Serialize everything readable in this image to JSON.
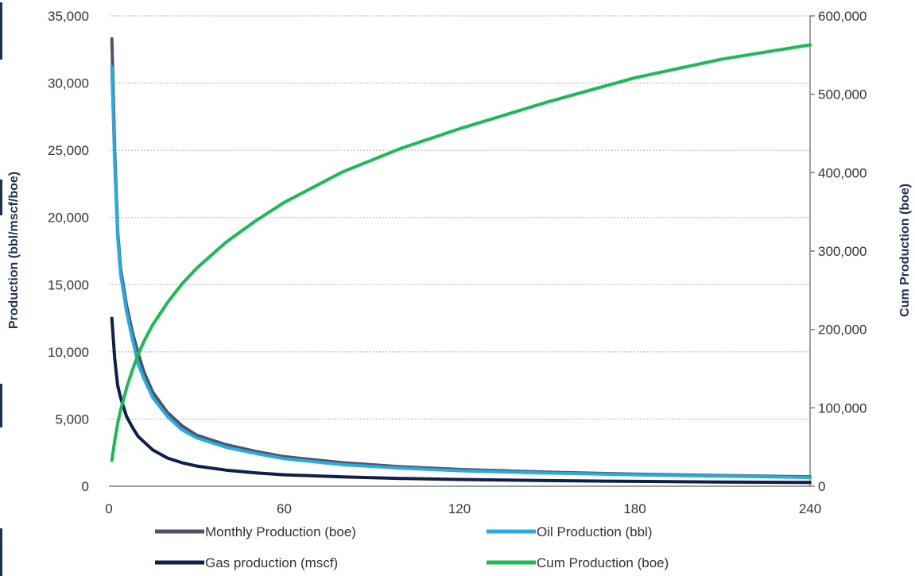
{
  "chart_data": {
    "type": "line",
    "x_ticks": [
      0,
      60,
      120,
      180,
      240
    ],
    "xlim": [
      0,
      240
    ],
    "left_axis": {
      "label": "Production (bbl/mscf/boe)",
      "ylim": [
        0,
        35000
      ],
      "ticks": [
        0,
        5000,
        10000,
        15000,
        20000,
        25000,
        30000,
        35000
      ],
      "tick_labels": [
        "0",
        "5,000",
        "10,000",
        "15,000",
        "20,000",
        "25,000",
        "30,000",
        "35,000"
      ]
    },
    "right_axis": {
      "label": "Cum Production (boe)",
      "ylim": [
        0,
        600000
      ],
      "ticks": [
        0,
        100000,
        200000,
        300000,
        400000,
        500000,
        600000
      ],
      "tick_labels": [
        "0",
        "100,000",
        "200,000",
        "300,000",
        "400,000",
        "500,000",
        "600,000"
      ]
    },
    "grid": true,
    "legend_position": "bottom",
    "series": [
      {
        "name": "Monthly Production (boe)",
        "axis": "left",
        "color": "#4a5568",
        "x": [
          1,
          2,
          3,
          4,
          6,
          8,
          10,
          12,
          15,
          20,
          25,
          30,
          40,
          50,
          60,
          80,
          100,
          120,
          150,
          180,
          210,
          240
        ],
        "values": [
          33300,
          25000,
          19000,
          16200,
          13500,
          11500,
          9900,
          8500,
          7000,
          5500,
          4500,
          3800,
          3100,
          2600,
          2200,
          1750,
          1450,
          1250,
          1050,
          900,
          800,
          700
        ]
      },
      {
        "name": "Oil Production (bbl)",
        "axis": "left",
        "color": "#29abe2",
        "x": [
          1,
          2,
          3,
          4,
          6,
          8,
          10,
          12,
          15,
          20,
          25,
          30,
          40,
          50,
          60,
          80,
          100,
          120,
          150,
          180,
          210,
          240
        ],
        "values": [
          31200,
          24000,
          18500,
          15800,
          13000,
          11000,
          9100,
          8000,
          6600,
          5200,
          4200,
          3600,
          2900,
          2450,
          2050,
          1600,
          1350,
          1150,
          980,
          850,
          750,
          650
        ]
      },
      {
        "name": "Gas production (mscf)",
        "axis": "left",
        "color": "#0d1f4c",
        "x": [
          1,
          2,
          3,
          4,
          6,
          8,
          10,
          12,
          15,
          20,
          25,
          30,
          40,
          50,
          60,
          80,
          100,
          120,
          150,
          180,
          210,
          240
        ],
        "values": [
          12500,
          9500,
          7500,
          6600,
          5200,
          4400,
          3700,
          3300,
          2700,
          2100,
          1750,
          1500,
          1200,
          1000,
          850,
          700,
          580,
          500,
          420,
          360,
          310,
          280
        ]
      },
      {
        "name": "Cum Production (boe)",
        "axis": "right",
        "color": "#1db954",
        "x": [
          1,
          2,
          3,
          4,
          6,
          8,
          10,
          12,
          15,
          20,
          25,
          30,
          40,
          50,
          60,
          80,
          100,
          120,
          150,
          180,
          210,
          240
        ],
        "values": [
          33000,
          58000,
          80000,
          97000,
          125000,
          148000,
          168000,
          185000,
          206000,
          234000,
          258000,
          278000,
          311000,
          338000,
          362000,
          401000,
          431000,
          456000,
          490000,
          521000,
          545000,
          563000
        ]
      }
    ]
  }
}
